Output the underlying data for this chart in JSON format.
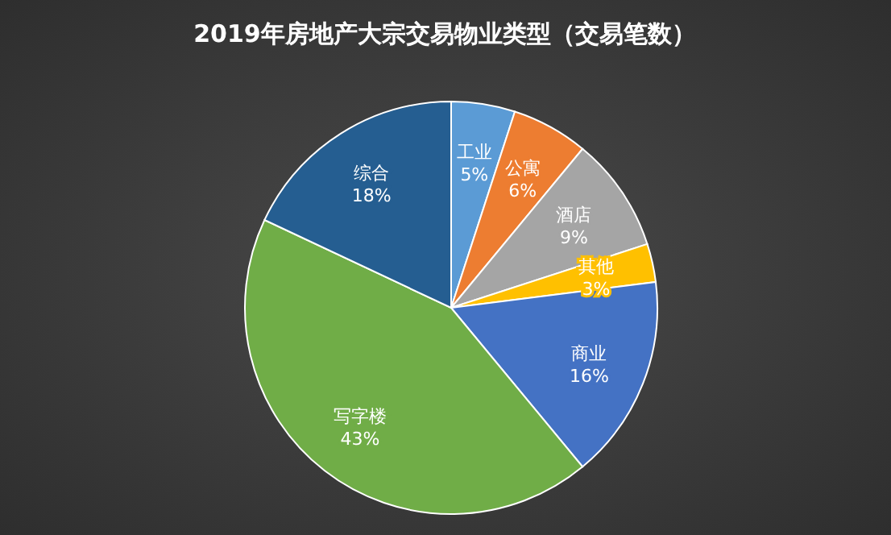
{
  "chart_data": {
    "type": "pie",
    "title": "2019年房地产大宗交易物业类型（交易笔数）",
    "categories": [
      "工业",
      "公寓",
      "酒店",
      "其他",
      "商业",
      "写字楼",
      "综合"
    ],
    "values": [
      5,
      6,
      9,
      3,
      16,
      43,
      18
    ],
    "value_labels": [
      "5%",
      "6%",
      "9%",
      "3%",
      "16%",
      "43%",
      "18%"
    ],
    "colors": [
      "#5b9bd5",
      "#ed7d31",
      "#a5a5a5",
      "#ffc000",
      "#4472c4",
      "#70ad47",
      "#255e91"
    ]
  }
}
